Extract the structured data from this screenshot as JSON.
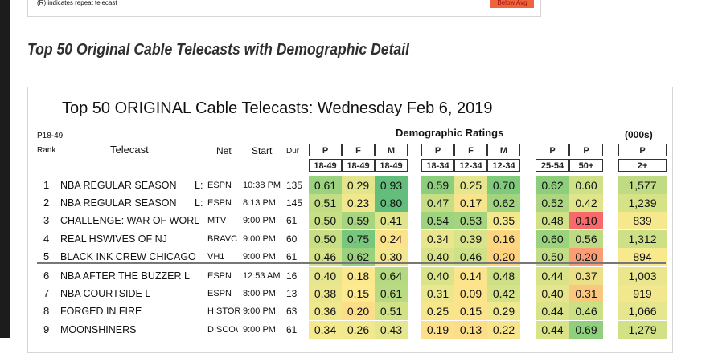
{
  "top_note": "(R) indicates repeat telecast",
  "below_avg_label": "Below Avg",
  "section_title": "Top 50 Original Cable Telecasts with Demographic Detail",
  "table": {
    "title": "Top 50 ORIGINAL Cable Telecasts:  Wednesday Feb 6, 2019",
    "p_label": "P18-49",
    "rank_label": "Rank",
    "telecast_label": "Telecast",
    "net_label": "Net",
    "start_label": "Start",
    "dur_label": "Dur",
    "demo_header": "Demographic Ratings",
    "thousands_header": "(000s)",
    "col_top": [
      "P",
      "F",
      "M",
      "P",
      "F",
      "M",
      "P",
      "P",
      "P"
    ],
    "col_bottom": [
      "18-49",
      "18-49",
      "18-49",
      "18-34",
      "12-34",
      "12-34",
      "25-54",
      "50+",
      "2+"
    ],
    "rows": [
      {
        "rank": "1",
        "telecast": "NBA REGULAR SEASON",
        "flag": "L:",
        "net": "ESPN",
        "start": "10:38 PM",
        "dur": "135",
        "values": [
          "0.61",
          "0.29",
          "0.93",
          "0.59",
          "0.25",
          "0.70",
          "0.62",
          "0.60",
          "1,577"
        ]
      },
      {
        "rank": "2",
        "telecast": "NBA REGULAR SEASON",
        "flag": "L:",
        "net": "ESPN",
        "start": "8:13 PM",
        "dur": "145",
        "values": [
          "0.51",
          "0.23",
          "0.80",
          "0.47",
          "0.17",
          "0.62",
          "0.52",
          "0.42",
          "1,239"
        ]
      },
      {
        "rank": "3",
        "telecast": "CHALLENGE: WAR OF WORL",
        "flag": "",
        "net": "MTV",
        "start": "9:00 PM",
        "dur": "61",
        "values": [
          "0.50",
          "0.59",
          "0.41",
          "0.54",
          "0.53",
          "0.35",
          "0.48",
          "0.10",
          "839"
        ]
      },
      {
        "rank": "4",
        "telecast": "REAL HSWIVES OF NJ",
        "flag": "",
        "net": "BRAVC",
        "start": "9:00 PM",
        "dur": "60",
        "values": [
          "0.50",
          "0.75",
          "0.24",
          "0.34",
          "0.39",
          "0.16",
          "0.60",
          "0.56",
          "1,312"
        ]
      },
      {
        "rank": "5",
        "telecast": "BLACK INK CREW CHICAGO",
        "flag": "",
        "net": "VH1",
        "start": "9:00 PM",
        "dur": "61",
        "values": [
          "0.46",
          "0.62",
          "0.30",
          "0.40",
          "0.46",
          "0.20",
          "0.50",
          "0.20",
          "894"
        ]
      },
      {
        "rank": "6",
        "telecast": "NBA AFTER THE BUZZER  L",
        "flag": "",
        "net": "ESPN",
        "start": "12:53 AM",
        "dur": "16",
        "values": [
          "0.40",
          "0.18",
          "0.64",
          "0.40",
          "0.14",
          "0.48",
          "0.44",
          "0.37",
          "1,003"
        ]
      },
      {
        "rank": "7",
        "telecast": "NBA COURTSIDE  L",
        "flag": "",
        "net": "ESPN",
        "start": "8:00 PM",
        "dur": "13",
        "values": [
          "0.38",
          "0.15",
          "0.61",
          "0.31",
          "0.09",
          "0.42",
          "0.40",
          "0.31",
          "919"
        ]
      },
      {
        "rank": "8",
        "telecast": "FORGED IN FIRE",
        "flag": "",
        "net": "HISTOR",
        "start": "9:00 PM",
        "dur": "63",
        "values": [
          "0.36",
          "0.20",
          "0.51",
          "0.25",
          "0.15",
          "0.29",
          "0.44",
          "0.46",
          "1,066"
        ]
      },
      {
        "rank": "9",
        "telecast": "MOONSHINERS",
        "flag": "",
        "net": "DISCO\\",
        "start": "9:00 PM",
        "dur": "61",
        "values": [
          "0.34",
          "0.26",
          "0.43",
          "0.19",
          "0.13",
          "0.22",
          "0.44",
          "0.69",
          "1,279"
        ]
      }
    ],
    "cell_colors": [
      [
        "#9bd27e",
        "#e3e58c",
        "#63be7b",
        "#8dce7d",
        "#e6e68e",
        "#80ca7c",
        "#8dce7d",
        "#cfe186",
        "#bfdc84"
      ],
      [
        "#c2dd84",
        "#f1e88d",
        "#63be7b",
        "#c7de85",
        "#f8e48c",
        "#a2d47f",
        "#aed680",
        "#e0e48a",
        "#d6e286"
      ],
      [
        "#c9df85",
        "#a6d47f",
        "#e0e48a",
        "#9fd37f",
        "#a4d47f",
        "#f3e88d",
        "#d0e186",
        "#f8696b",
        "#f6e98d"
      ],
      [
        "#c9df85",
        "#79c77c",
        "#fbe28b",
        "#eae68e",
        "#d9e389",
        "#fcd680",
        "#9bd27e",
        "#bedb83",
        "#cee086"
      ],
      [
        "#d6e287",
        "#99d17d",
        "#f3e88d",
        "#dbe389",
        "#cfe186",
        "#ffd27f",
        "#c2dd84",
        "#fa9d74",
        "#f8e98d"
      ],
      [
        "#e6e68e",
        "#fce98e",
        "#b5d981",
        "#dbe389",
        "#fbe48b",
        "#cde086",
        "#dbe389",
        "#ecdf88",
        "#e9e68d"
      ],
      [
        "#ebe68e",
        "#fee98e",
        "#b9da82",
        "#ebe78e",
        "#fde38a",
        "#d6e287",
        "#e4e58c",
        "#f9c77d",
        "#f1e88d"
      ],
      [
        "#f0e88d",
        "#fcde88",
        "#d0e186",
        "#f6e78d",
        "#fbe48b",
        "#f0e88d",
        "#dbe389",
        "#cbdf85",
        "#e6e68e"
      ],
      [
        "#f5e98e",
        "#f2e88d",
        "#e6e68e",
        "#fde08a",
        "#fcde88",
        "#f8e48c",
        "#dbe389",
        "#8fcf7d",
        "#d3e186"
      ]
    ]
  }
}
